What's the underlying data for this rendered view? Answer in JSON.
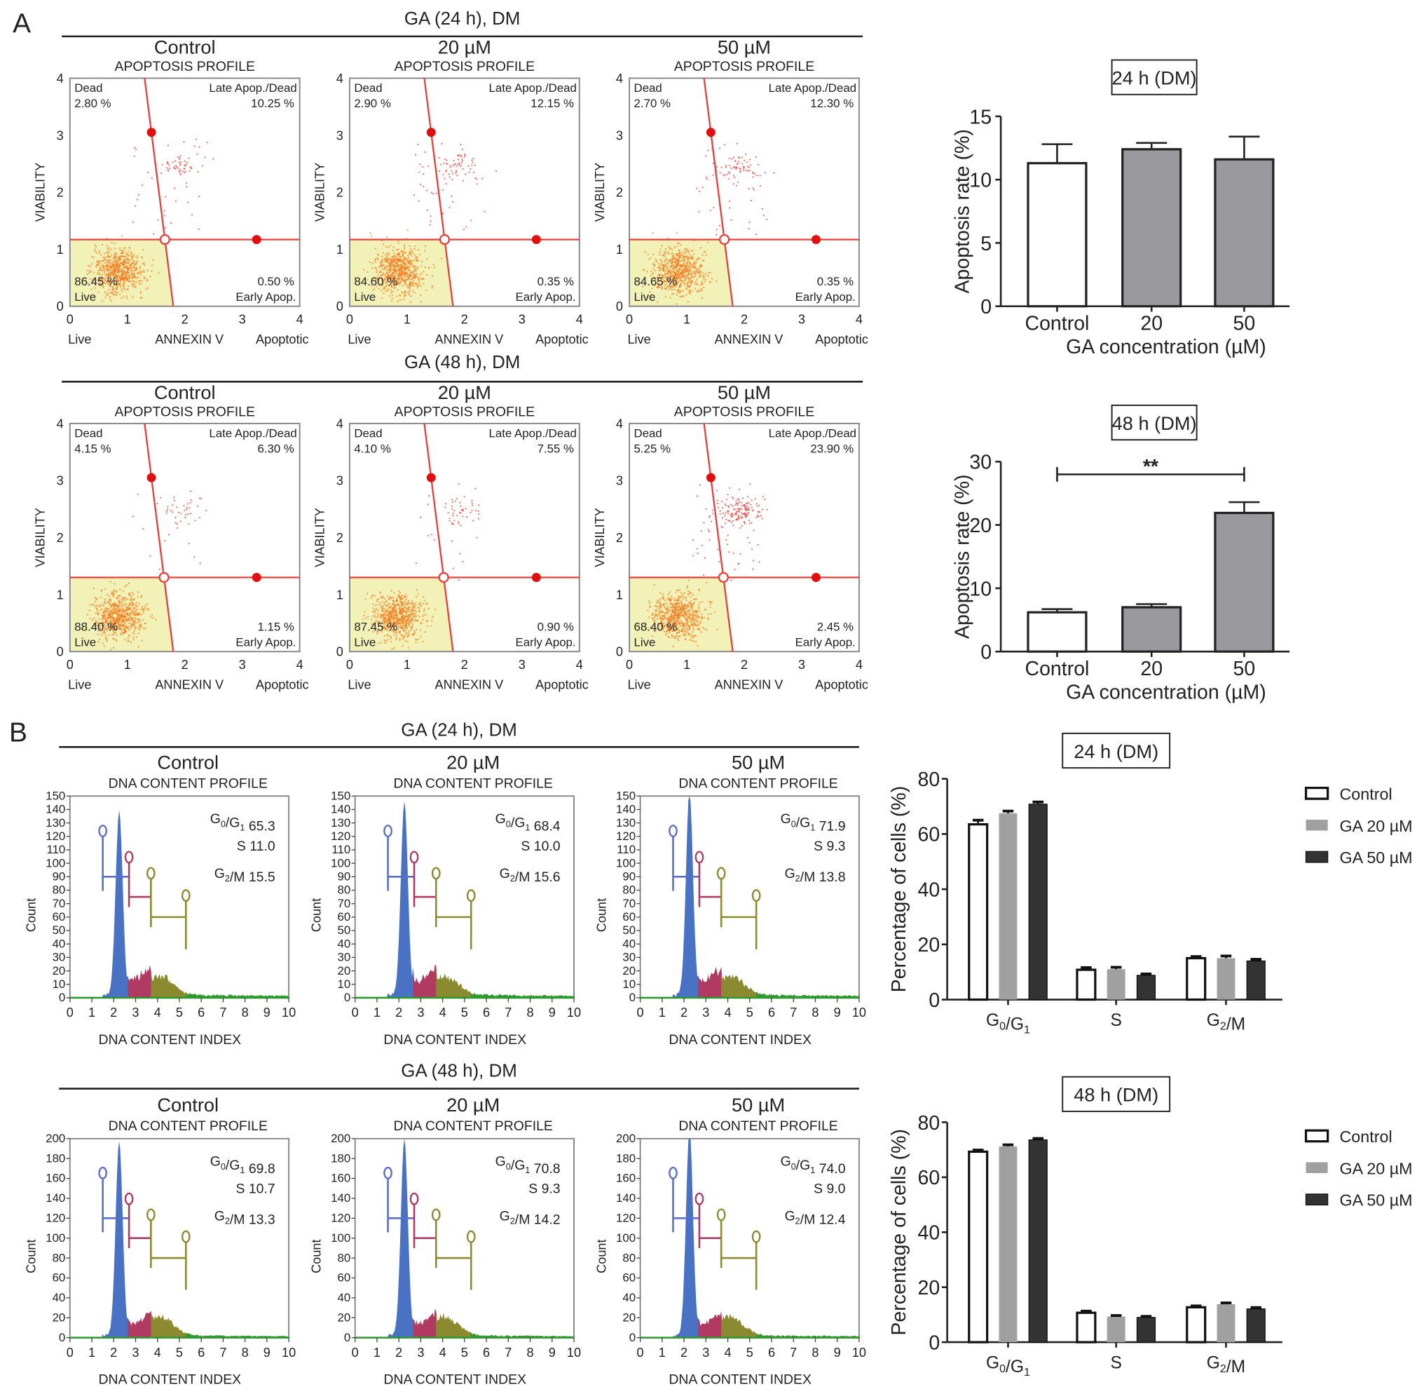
{
  "panel_labels": [
    "A",
    "B"
  ],
  "group_headers": {
    "A_24": "GA (24 h), DM",
    "A_48": "GA (48 h), DM",
    "B_24": "GA (24 h), DM",
    "B_48": "GA (48 h), DM"
  },
  "colors": {
    "gate_line": "#e8403a",
    "live_region": "#f2f2b8",
    "live_points": "#f07a1e",
    "dead_points": "#e8403a",
    "g1_fill": "#4a72c4",
    "s_fill": "#b03a62",
    "g2m_fill": "#8c8a30",
    "tail_fill": "#2e9a2e",
    "bar_gray": "#9a9a9e",
    "bar_dark": "#333333"
  },
  "chart_data": [
    {
      "type": "scatter",
      "group": "A_24",
      "title": "Control",
      "subtitle": "APOPTOSIS PROFILE",
      "xlabel": "ANNEXIN V",
      "xlabel_left": "Live",
      "xlabel_right": "Apoptotic",
      "ylabel": "VIABILITY",
      "xlim": [
        0,
        4
      ],
      "ylim": [
        0,
        4
      ],
      "xticks": [
        "0",
        "1",
        "2",
        "3",
        "4"
      ],
      "yticks": [
        "0",
        "1",
        "2",
        "3",
        "4"
      ],
      "gate": {
        "h_y": 1.17,
        "v_top_x": 1.3,
        "v_bottom_x": 1.8
      },
      "quadrants": {
        "dead_label": "Dead",
        "dead_value": "2.80 %",
        "late_label": "Late Apop./Dead",
        "late_value": "10.25 %",
        "live_label": "Live",
        "live_value": "86.45 %",
        "early_label": "Early Apop.",
        "early_value": "0.50 %"
      }
    },
    {
      "type": "scatter",
      "group": "A_24",
      "title": "20 µM",
      "subtitle": "APOPTOSIS PROFILE",
      "xlabel": "ANNEXIN V",
      "xlabel_left": "Live",
      "xlabel_right": "Apoptotic",
      "ylabel": "VIABILITY",
      "xlim": [
        0,
        4
      ],
      "ylim": [
        0,
        4
      ],
      "xticks": [
        "0",
        "1",
        "2",
        "3",
        "4"
      ],
      "yticks": [
        "0",
        "1",
        "2",
        "3",
        "4"
      ],
      "gate": {
        "h_y": 1.17,
        "v_top_x": 1.3,
        "v_bottom_x": 1.8
      },
      "quadrants": {
        "dead_label": "Dead",
        "dead_value": "2.90 %",
        "late_label": "Late Apop./Dead",
        "late_value": "12.15 %",
        "live_label": "Live",
        "live_value": "84.60 %",
        "early_label": "Early Apop.",
        "early_value": "0.35 %"
      }
    },
    {
      "type": "scatter",
      "group": "A_24",
      "title": "50 µM",
      "subtitle": "APOPTOSIS PROFILE",
      "xlabel": "ANNEXIN V",
      "xlabel_left": "Live",
      "xlabel_right": "Apoptotic",
      "ylabel": "VIABILITY",
      "xlim": [
        0,
        4
      ],
      "ylim": [
        0,
        4
      ],
      "xticks": [
        "0",
        "1",
        "2",
        "3",
        "4"
      ],
      "yticks": [
        "0",
        "1",
        "2",
        "3",
        "4"
      ],
      "gate": {
        "h_y": 1.17,
        "v_top_x": 1.3,
        "v_bottom_x": 1.8
      },
      "quadrants": {
        "dead_label": "Dead",
        "dead_value": "2.70 %",
        "late_label": "Late Apop./Dead",
        "late_value": "12.30 %",
        "live_label": "Live",
        "live_value": "84.65 %",
        "early_label": "Early Apop.",
        "early_value": "0.35 %"
      }
    },
    {
      "type": "scatter",
      "group": "A_48",
      "title": "Control",
      "subtitle": "APOPTOSIS PROFILE",
      "xlabel": "ANNEXIN V",
      "xlabel_left": "Live",
      "xlabel_right": "Apoptotic",
      "ylabel": "VIABILITY",
      "xlim": [
        0,
        4
      ],
      "ylim": [
        0,
        4
      ],
      "xticks": [
        "0",
        "1",
        "2",
        "3",
        "4"
      ],
      "yticks": [
        "0",
        "1",
        "2",
        "3",
        "4"
      ],
      "gate": {
        "h_y": 1.3,
        "v_top_x": 1.3,
        "v_bottom_x": 1.8
      },
      "quadrants": {
        "dead_label": "Dead",
        "dead_value": "4.15 %",
        "late_label": "Late Apop./Dead",
        "late_value": "6.30 %",
        "live_label": "Live",
        "live_value": "88.40 %",
        "early_label": "Early Apop.",
        "early_value": "1.15 %"
      }
    },
    {
      "type": "scatter",
      "group": "A_48",
      "title": "20 µM",
      "subtitle": "APOPTOSIS PROFILE",
      "xlabel": "ANNEXIN V",
      "xlabel_left": "Live",
      "xlabel_right": "Apoptotic",
      "ylabel": "VIABILITY",
      "xlim": [
        0,
        4
      ],
      "ylim": [
        0,
        4
      ],
      "xticks": [
        "0",
        "1",
        "2",
        "3",
        "4"
      ],
      "yticks": [
        "0",
        "1",
        "2",
        "3",
        "4"
      ],
      "gate": {
        "h_y": 1.3,
        "v_top_x": 1.3,
        "v_bottom_x": 1.8
      },
      "quadrants": {
        "dead_label": "Dead",
        "dead_value": "4.10 %",
        "late_label": "Late Apop./Dead",
        "late_value": "7.55 %",
        "live_label": "Live",
        "live_value": "87.45 %",
        "early_label": "Early Apop.",
        "early_value": "0.90 %"
      }
    },
    {
      "type": "scatter",
      "group": "A_48",
      "title": "50 µM",
      "subtitle": "APOPTOSIS PROFILE",
      "xlabel": "ANNEXIN V",
      "xlabel_left": "Live",
      "xlabel_right": "Apoptotic",
      "ylabel": "VIABILITY",
      "xlim": [
        0,
        4
      ],
      "ylim": [
        0,
        4
      ],
      "xticks": [
        "0",
        "1",
        "2",
        "3",
        "4"
      ],
      "yticks": [
        "0",
        "1",
        "2",
        "3",
        "4"
      ],
      "gate": {
        "h_y": 1.3,
        "v_top_x": 1.3,
        "v_bottom_x": 1.8
      },
      "quadrants": {
        "dead_label": "Dead",
        "dead_value": "5.25 %",
        "late_label": "Late Apop./Dead",
        "late_value": "23.90 %",
        "live_label": "Live",
        "live_value": "68.40 %",
        "early_label": "Early Apop.",
        "early_value": "2.45 %"
      }
    },
    {
      "type": "bar",
      "group": "A_24",
      "title": "24 h (DM)",
      "categories": [
        "Control",
        "20",
        "50"
      ],
      "values": [
        11.3,
        12.4,
        11.6
      ],
      "errors": [
        1.5,
        0.5,
        1.8
      ],
      "xlabel": "GA concentration (µM)",
      "ylabel": "Apoptosis rate (%)",
      "ylim": [
        0,
        15
      ],
      "yticks": [
        "0",
        "5",
        "10",
        "15"
      ],
      "bar_fills": [
        "#ffffff",
        "#9a9a9e",
        "#9a9a9e"
      ]
    },
    {
      "type": "bar",
      "group": "A_48",
      "title": "48 h (DM)",
      "categories": [
        "Control",
        "20",
        "50"
      ],
      "values": [
        6.2,
        7.0,
        21.9
      ],
      "errors": [
        0.5,
        0.5,
        1.7
      ],
      "xlabel": "GA concentration (µM)",
      "ylabel": "Apoptosis rate (%)",
      "ylim": [
        0,
        30
      ],
      "yticks": [
        "0",
        "10",
        "20",
        "30"
      ],
      "bar_fills": [
        "#ffffff",
        "#9a9a9e",
        "#9a9a9e"
      ],
      "significance": {
        "from": "Control",
        "to": "50",
        "label": "**"
      }
    },
    {
      "type": "area",
      "group": "B_24",
      "title": "Control",
      "subtitle": "DNA CONTENT PROFILE",
      "xlabel": "DNA CONTENT INDEX",
      "ylabel": "Count",
      "xlim": [
        0,
        10
      ],
      "ylim": [
        0,
        150
      ],
      "ystep": 10,
      "stats": [
        {
          "phase": "G0/G1",
          "value": "65.3"
        },
        {
          "phase": "S",
          "value": "11.0"
        },
        {
          "phase": "G2/M",
          "value": "15.5"
        }
      ]
    },
    {
      "type": "area",
      "group": "B_24",
      "title": "20 µM",
      "subtitle": "DNA CONTENT PROFILE",
      "xlabel": "DNA CONTENT INDEX",
      "ylabel": "Count",
      "xlim": [
        0,
        10
      ],
      "ylim": [
        0,
        150
      ],
      "ystep": 10,
      "stats": [
        {
          "phase": "G0/G1",
          "value": "68.4"
        },
        {
          "phase": "S",
          "value": "10.0"
        },
        {
          "phase": "G2/M",
          "value": "15.6"
        }
      ]
    },
    {
      "type": "area",
      "group": "B_24",
      "title": "50 µM",
      "subtitle": "DNA CONTENT PROFILE",
      "xlabel": "DNA CONTENT INDEX",
      "ylabel": "Count",
      "xlim": [
        0,
        10
      ],
      "ylim": [
        0,
        150
      ],
      "ystep": 10,
      "stats": [
        {
          "phase": "G0/G1",
          "value": "71.9"
        },
        {
          "phase": "S",
          "value": "9.3"
        },
        {
          "phase": "G2/M",
          "value": "13.8"
        }
      ]
    },
    {
      "type": "area",
      "group": "B_48",
      "title": "Control",
      "subtitle": "DNA CONTENT PROFILE",
      "xlabel": "DNA CONTENT INDEX",
      "ylabel": "Count",
      "xlim": [
        0,
        10
      ],
      "ylim": [
        0,
        200
      ],
      "ystep": 20,
      "stats": [
        {
          "phase": "G0/G1",
          "value": "69.8"
        },
        {
          "phase": "S",
          "value": "10.7"
        },
        {
          "phase": "G2/M",
          "value": "13.3"
        }
      ]
    },
    {
      "type": "area",
      "group": "B_48",
      "title": "20 µM",
      "subtitle": "DNA CONTENT PROFILE",
      "xlabel": "DNA CONTENT INDEX",
      "ylabel": "Count",
      "xlim": [
        0,
        10
      ],
      "ylim": [
        0,
        200
      ],
      "ystep": 20,
      "stats": [
        {
          "phase": "G0/G1",
          "value": "70.8"
        },
        {
          "phase": "S",
          "value": "9.3"
        },
        {
          "phase": "G2/M",
          "value": "14.2"
        }
      ]
    },
    {
      "type": "area",
      "group": "B_48",
      "title": "50 µM",
      "subtitle": "DNA CONTENT PROFILE",
      "xlabel": "DNA CONTENT INDEX",
      "ylabel": "Count",
      "xlim": [
        0,
        10
      ],
      "ylim": [
        0,
        200
      ],
      "ystep": 20,
      "stats": [
        {
          "phase": "G0/G1",
          "value": "74.0"
        },
        {
          "phase": "S",
          "value": "9.0"
        },
        {
          "phase": "G2/M",
          "value": "12.4"
        }
      ]
    },
    {
      "type": "bar",
      "group": "B_24",
      "title": "24 h (DM)",
      "categories": [
        "G0/G1",
        "S",
        "G2/M"
      ],
      "ylabel": "Percentage of cells (%)",
      "ylim": [
        0,
        80
      ],
      "yticks": [
        "0",
        "20",
        "40",
        "60",
        "80"
      ],
      "legend": "right",
      "series": [
        {
          "name": "Control",
          "values": [
            63.5,
            10.8,
            15.0
          ],
          "errors": [
            1.5,
            0.8,
            0.6
          ],
          "fill": "#ffffff"
        },
        {
          "name": "GA 20 µM",
          "values": [
            67.5,
            11.0,
            15.0
          ],
          "errors": [
            0.8,
            0.7,
            0.8
          ],
          "fill": "#a0a0a0"
        },
        {
          "name": "GA 50 µM",
          "values": [
            70.8,
            8.8,
            14.0
          ],
          "errors": [
            0.8,
            0.5,
            0.6
          ],
          "fill": "#333333"
        }
      ]
    },
    {
      "type": "bar",
      "group": "B_48",
      "title": "48 h (DM)",
      "categories": [
        "G0/G1",
        "S",
        "G2/M"
      ],
      "ylabel": "Percentage of cells (%)",
      "ylim": [
        0,
        80
      ],
      "yticks": [
        "0",
        "20",
        "40",
        "60",
        "80"
      ],
      "legend": "right",
      "series": [
        {
          "name": "Control",
          "values": [
            69.3,
            10.7,
            12.7
          ],
          "errors": [
            0.6,
            0.6,
            0.5
          ],
          "fill": "#ffffff"
        },
        {
          "name": "GA 20 µM",
          "values": [
            71.2,
            9.3,
            13.8
          ],
          "errors": [
            0.6,
            0.4,
            0.5
          ],
          "fill": "#a0a0a0"
        },
        {
          "name": "GA 50 µM",
          "values": [
            73.6,
            9.0,
            12.1
          ],
          "errors": [
            0.5,
            0.4,
            0.5
          ],
          "fill": "#333333"
        }
      ]
    }
  ]
}
